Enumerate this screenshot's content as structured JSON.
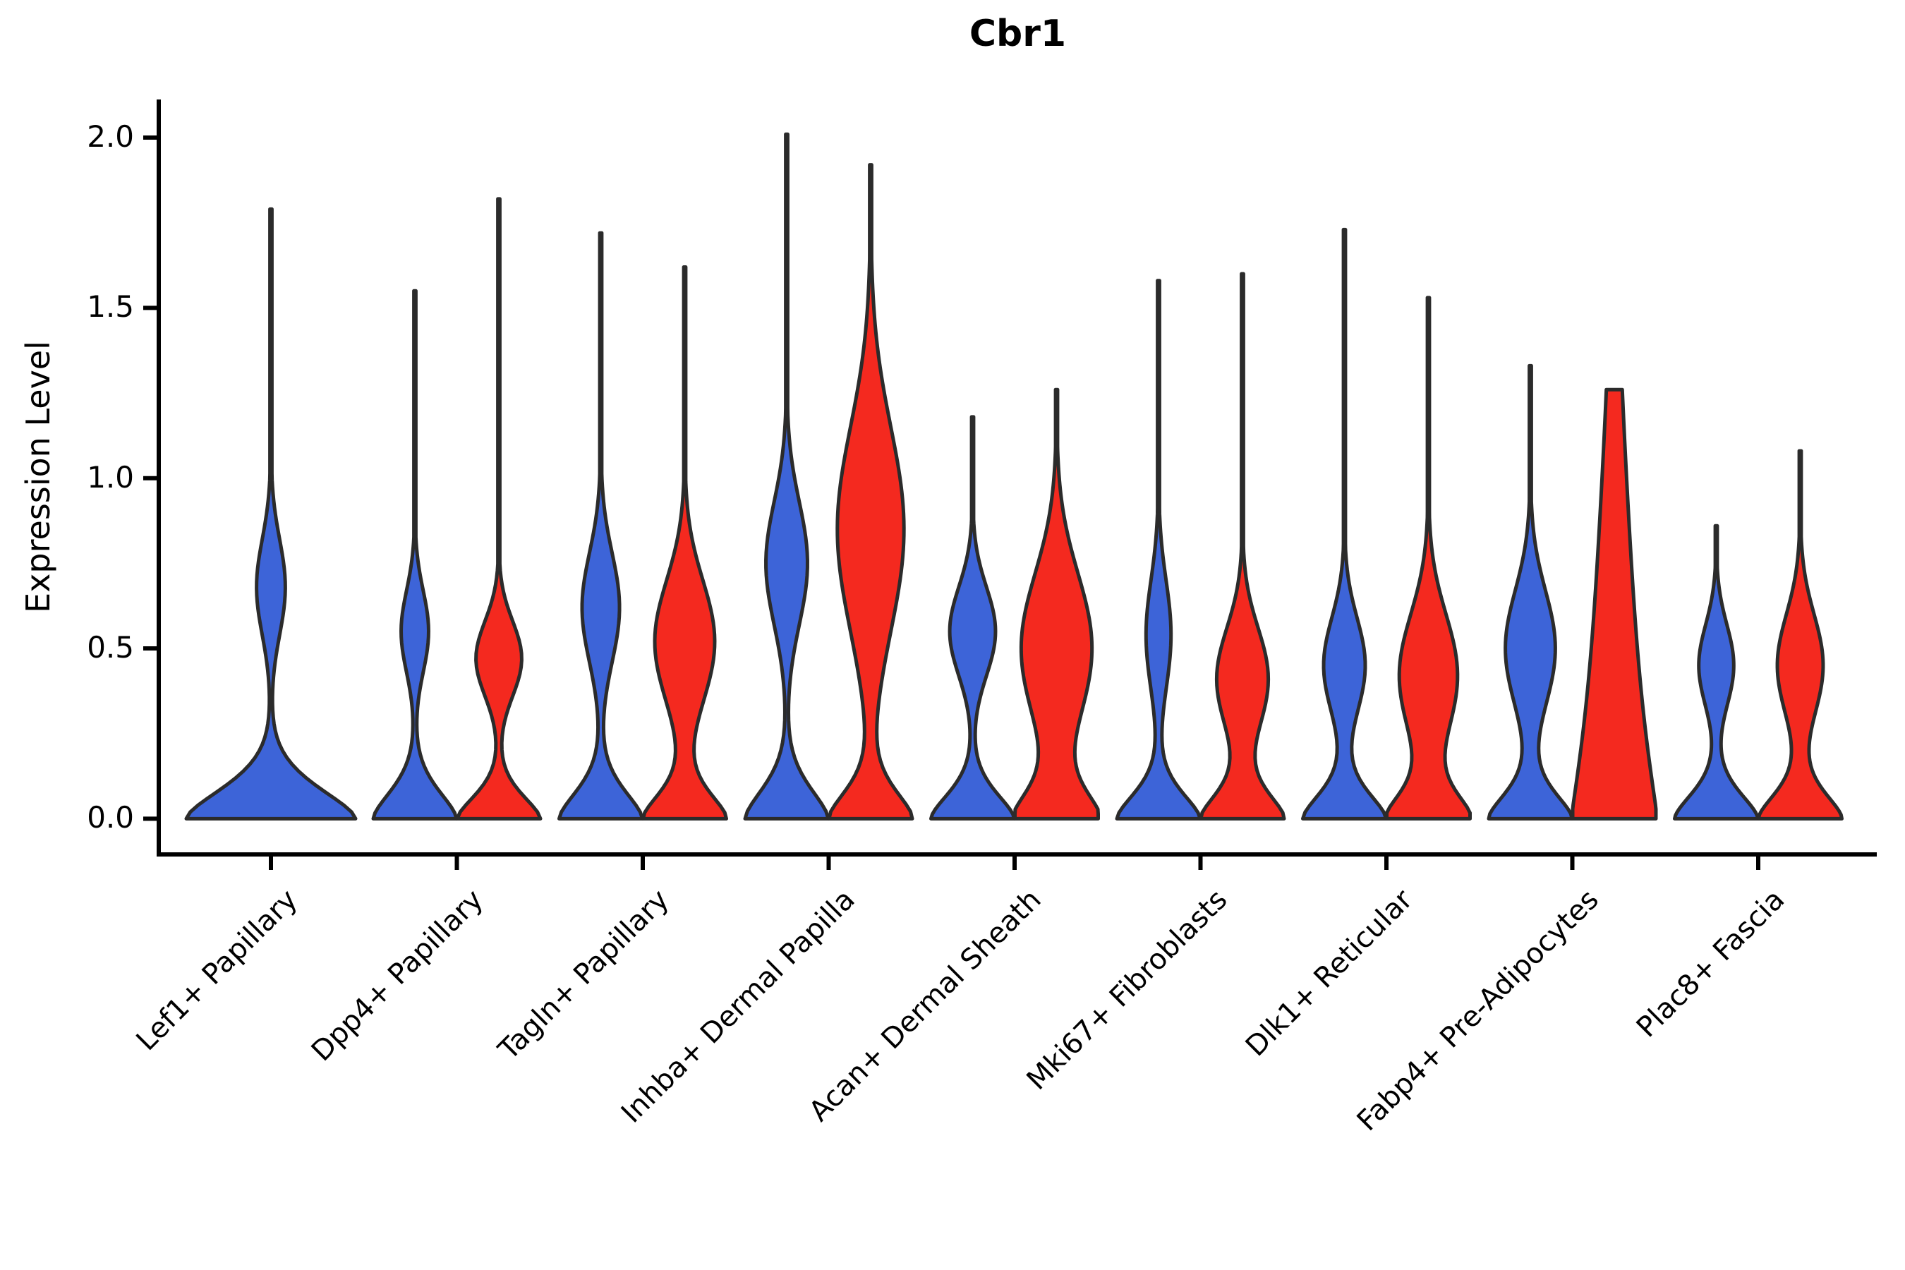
{
  "chart_data": {
    "type": "violin",
    "title": "Cbr1",
    "ylabel": "Expression Level",
    "xlabel": "",
    "grid": false,
    "legend": "none",
    "ylim": [
      -0.105,
      2.112
    ],
    "yticks": {
      "values": [
        0.0,
        0.5,
        1.0,
        1.5,
        2.0
      ],
      "labels": [
        "0.0",
        "0.5",
        "1.0",
        "1.5",
        "2.0"
      ]
    },
    "categories": [
      "Lef1+ Papillary",
      "Dpp4+ Papillary",
      "Tagln+ Papillary",
      "Inhba+ Dermal Papilla",
      "Acan+ Dermal Sheath",
      "Mki67+ Fibroblasts",
      "Dlk1+ Reticular",
      "Fabp4+ Pre-Adipocytes",
      "Plac8+ Fascia"
    ],
    "outline_color": "#2b2b2b",
    "series": [
      {
        "name": "blue",
        "color": "#3D64D8",
        "max_expression": [
          1.79,
          1.55,
          1.72,
          2.01,
          1.18,
          1.58,
          1.73,
          1.33,
          0.86
        ],
        "violins": [
          {
            "max": 1.79,
            "c": 0.68,
            "s": 0.14,
            "a": 0.17,
            "bs": 0.13
          },
          {
            "max": 1.55,
            "c": 0.55,
            "s": 0.12,
            "a": 0.33,
            "bs": 0.12
          },
          {
            "max": 1.72,
            "c": 0.62,
            "s": 0.16,
            "a": 0.45,
            "bs": 0.12
          },
          {
            "max": 2.01,
            "c": 0.75,
            "s": 0.18,
            "a": 0.5,
            "bs": 0.13
          },
          {
            "max": 1.18,
            "c": 0.55,
            "s": 0.13,
            "a": 0.55,
            "bs": 0.11
          },
          {
            "max": 1.58,
            "c": 0.54,
            "s": 0.16,
            "a": 0.3,
            "bs": 0.11
          },
          {
            "max": 1.73,
            "c": 0.45,
            "s": 0.14,
            "a": 0.5,
            "bs": 0.11
          },
          {
            "max": 1.33,
            "c": 0.5,
            "s": 0.17,
            "a": 0.6,
            "bs": 0.11
          },
          {
            "max": 0.86,
            "c": 0.45,
            "s": 0.12,
            "a": 0.42,
            "bs": 0.11
          }
        ]
      },
      {
        "name": "red",
        "color": "#F4291F",
        "max_expression": [
          null,
          1.82,
          1.62,
          1.92,
          1.26,
          1.6,
          1.53,
          1.26,
          1.08
        ],
        "violins": [
          null,
          {
            "max": 1.82,
            "c": 0.47,
            "s": 0.11,
            "a": 0.55,
            "bs": 0.1
          },
          {
            "max": 1.62,
            "c": 0.52,
            "s": 0.18,
            "a": 0.72,
            "bs": 0.11
          },
          {
            "max": 1.92,
            "c": 0.85,
            "s": 0.3,
            "a": 0.8,
            "bs": 0.12
          },
          {
            "max": 1.26,
            "c": 0.5,
            "s": 0.22,
            "a": 0.85,
            "bs": 0.12
          },
          {
            "max": 1.6,
            "c": 0.41,
            "s": 0.15,
            "a": 0.62,
            "bs": 0.11
          },
          {
            "max": 1.53,
            "c": 0.42,
            "s": 0.18,
            "a": 0.7,
            "bs": 0.11
          },
          {
            "max": 1.26,
            "c": 0.8,
            "s": 0.5,
            "a": 0.12,
            "bs": 0.62,
            "be": 1.1
          },
          {
            "max": 1.08,
            "c": 0.45,
            "s": 0.15,
            "a": 0.55,
            "bs": 0.11
          }
        ]
      }
    ]
  }
}
